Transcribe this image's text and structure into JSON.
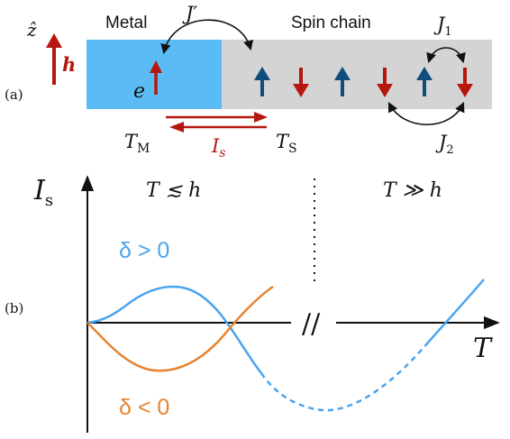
{
  "panel_a": {
    "label": "(a)",
    "axis_z": "ẑ",
    "field_h": "h",
    "metal_label": "Metal",
    "spin_chain_label": "Spin chain",
    "electron_label": "e",
    "coupling_Jprime": "J′",
    "coupling_J1": "J",
    "coupling_J1_sub": "1",
    "coupling_J2": "J",
    "coupling_J2_sub": "2",
    "temp_metal": "T",
    "temp_metal_sub": "M",
    "temp_spin": "T",
    "temp_spin_sub": "S",
    "current": "I",
    "current_sub": "s",
    "spin_sequence": [
      "up",
      "down",
      "up",
      "down",
      "up",
      "down"
    ],
    "colors": {
      "metal_fill": "#5bbcf5",
      "chain_fill": "#d4d4d4",
      "up_spin": "#0f4e7a",
      "down_spin": "#b5170e",
      "field": "#b5170e"
    }
  },
  "panel_b": {
    "label": "(b)",
    "y_axis": "I",
    "y_axis_sub": "s",
    "x_axis": "T",
    "regime_low": "T ≲ h",
    "regime_high": "T ≫ h",
    "break_mark": "//",
    "series_positive": "δ > 0",
    "series_negative": "δ < 0",
    "colors": {
      "positive": "#4aa3f0",
      "negative": "#e6832f"
    }
  }
}
